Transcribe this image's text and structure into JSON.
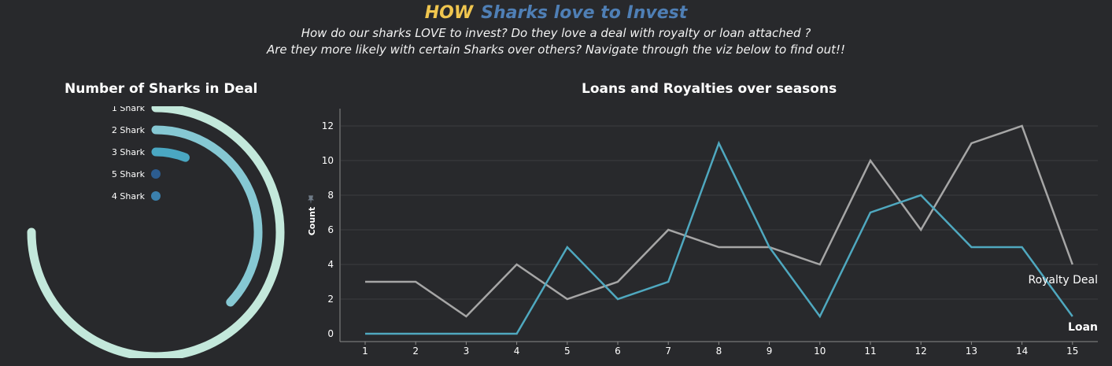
{
  "header": {
    "title_word1": "HOW",
    "title_rest": "Sharks love to Invest",
    "subtitle_line1": "How do our sharks LOVE to invest? Do they love a deal with royalty or loan attached ?",
    "subtitle_line2": "Are they more likely with certain Sharks over others? Navigate through the viz below to find out!!"
  },
  "colors": {
    "background": "#28292c",
    "title_accent": "#f0c64f",
    "title_blue": "#4f7fb5",
    "royalty_line": "#a6a6a6",
    "loan_line": "#4fa8bf"
  },
  "chart_data": [
    {
      "type": "radial-bar",
      "title": "Number of Sharks in Deal",
      "categories": [
        "1 Shark",
        "2 Shark",
        "3 Shark",
        "5 Shark",
        "4 Shark"
      ],
      "values": [
        0.75,
        0.37,
        0.06,
        0.0,
        0.0
      ],
      "value_unit": "fraction of full circle",
      "colors": [
        "#c3e8db",
        "#86c8d3",
        "#4aa7c2",
        "#2c5c8f",
        "#3b80ad"
      ]
    },
    {
      "type": "line",
      "title": "Loans and Royalties over seasons",
      "xlabel": "",
      "ylabel": "Count",
      "x": [
        1,
        2,
        3,
        4,
        5,
        6,
        7,
        8,
        9,
        10,
        11,
        12,
        13,
        14,
        15
      ],
      "x_ticks": [
        "1",
        "2",
        "3",
        "4",
        "5",
        "6",
        "7",
        "8",
        "9",
        "10",
        "11",
        "12",
        "13",
        "14",
        "15"
      ],
      "y_ticks": [
        "0",
        "2",
        "4",
        "6",
        "8",
        "10",
        "12"
      ],
      "ylim": [
        0,
        13
      ],
      "grid": true,
      "series": [
        {
          "name": "Royalty Deal",
          "color": "#a6a6a6",
          "values": [
            3,
            3,
            1,
            4,
            2,
            3,
            6,
            5,
            5,
            4,
            10,
            6,
            11,
            12,
            4
          ]
        },
        {
          "name": "Loan",
          "color": "#4fa8bf",
          "values": [
            0,
            0,
            0,
            0,
            5,
            2,
            3,
            11,
            5,
            1,
            7,
            8,
            5,
            5,
            1
          ]
        }
      ],
      "legend_placement": "inline at line ends"
    }
  ]
}
